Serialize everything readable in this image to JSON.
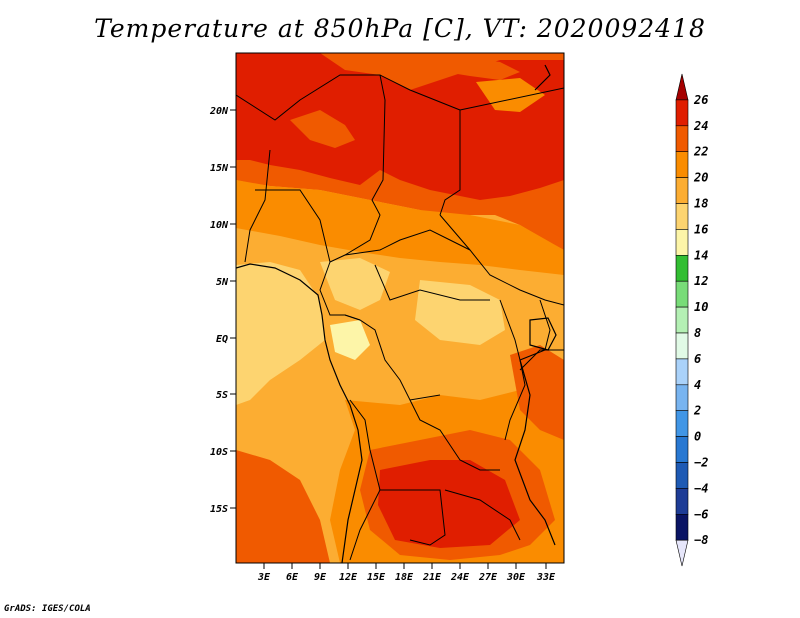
{
  "title": "Temperature at 850hPa [C], VT: 2020092418",
  "credit": "GrADS: IGES/COLA",
  "map": {
    "lat_labels": [
      "20N",
      "15N",
      "10N",
      "5N",
      "EQ",
      "5S",
      "10S",
      "15S"
    ],
    "lon_labels": [
      "3E",
      "6E",
      "9E",
      "12E",
      "15E",
      "18E",
      "21E",
      "24E",
      "27E",
      "30E",
      "33E"
    ]
  },
  "colorbar": {
    "levels": [
      "26",
      "24",
      "22",
      "20",
      "18",
      "16",
      "14",
      "12",
      "10",
      "8",
      "6",
      "4",
      "2",
      "0",
      "−2",
      "−4",
      "−6",
      "−8"
    ],
    "colors": [
      "#a50000",
      "#e01e00",
      "#f05a00",
      "#fa8c00",
      "#fcad32",
      "#fdd470",
      "#fdf5a8",
      "#32be32",
      "#78dc78",
      "#b4f0b4",
      "#e1fae6",
      "#aad2fa",
      "#78b4f0",
      "#4196e6",
      "#2878d2",
      "#1e5ab4",
      "#1e3c96",
      "#0a1464",
      "#e6e6fa"
    ]
  }
}
